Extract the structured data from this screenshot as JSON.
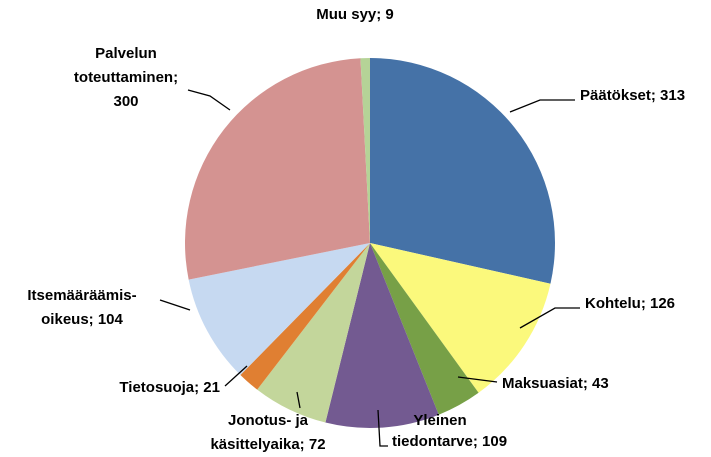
{
  "chart_data": {
    "type": "pie",
    "values": [
      313,
      126,
      43,
      109,
      72,
      21,
      104,
      300,
      9
    ],
    "value_labels": [
      [
        "Päätökset; 313"
      ],
      [
        "Kohtelu; 126"
      ],
      [
        "Maksuasiat; 43"
      ],
      [
        "Yleinen",
        "tiedontarve; 109"
      ],
      [
        "Jonotus- ja",
        "käsittelyaika; 72"
      ],
      [
        "Tietosuoja; 21"
      ],
      [
        "Itsemääräämis-",
        "oikeus; 104"
      ],
      [
        "Palvelun",
        "toteuttaminen;",
        "300"
      ],
      [
        "Muu syy; 9"
      ]
    ],
    "colors": [
      "#4572a7",
      "#fbf97c",
      "#77a047",
      "#735a91",
      "#c3d69b",
      "#e07f32",
      "#c6d9f1",
      "#d49391",
      "#b5d397"
    ]
  }
}
